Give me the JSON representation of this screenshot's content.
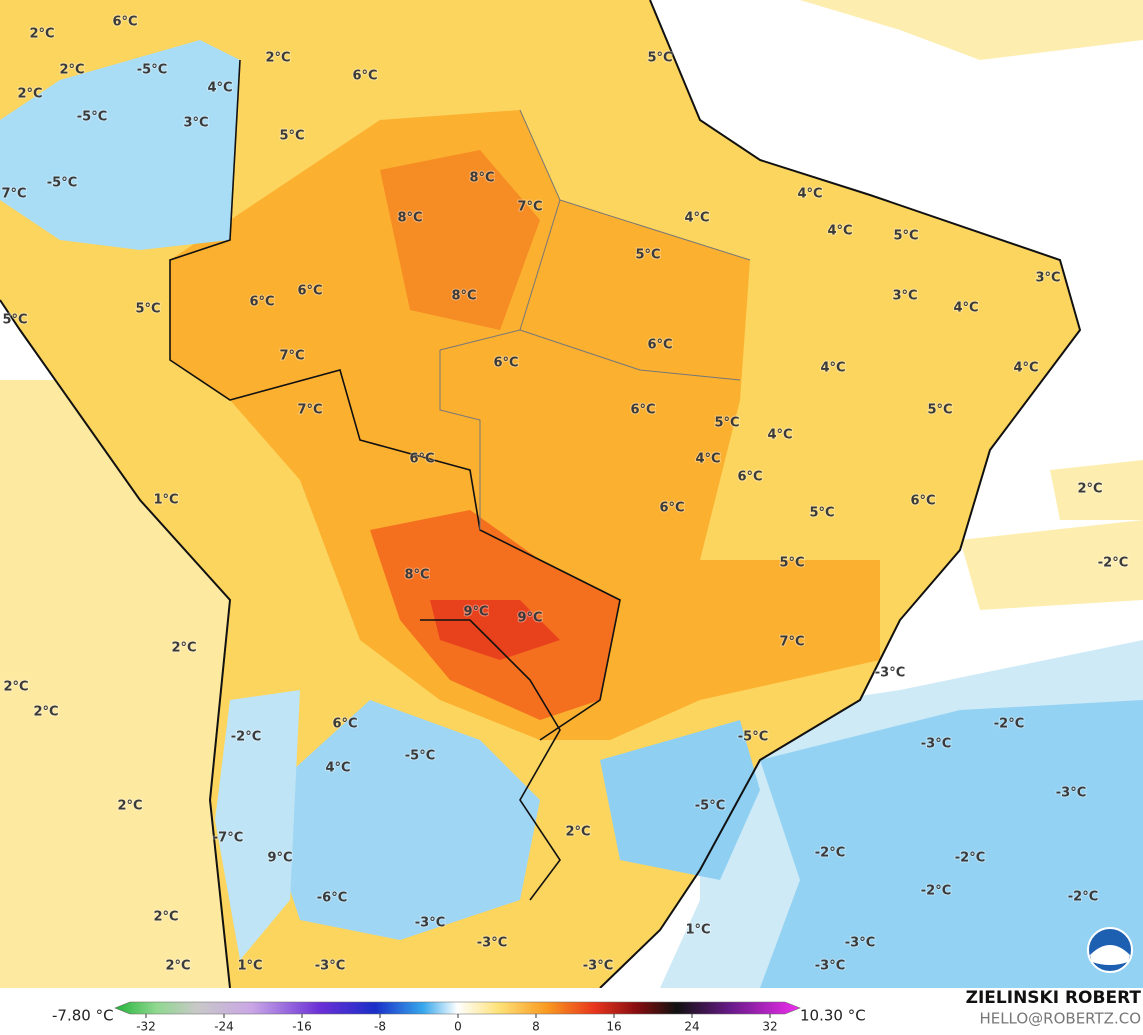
{
  "map": {
    "labels": [
      "6°C",
      "2°C",
      "2°C",
      "-5°C",
      "4°C",
      "2°C",
      "6°C",
      "2°C",
      "-5°C",
      "3°C",
      "5°C",
      "5°C",
      "-5°C",
      "7°C",
      "8°C",
      "7°C",
      "8°C",
      "4°C",
      "4°C",
      "4°C",
      "5°C",
      "5°C",
      "3°C",
      "6°C",
      "6°C",
      "8°C",
      "3°C",
      "4°C",
      "5°C",
      "5°C",
      "6°C",
      "7°C",
      "6°C",
      "4°C",
      "4°C",
      "7°C",
      "6°C",
      "5°C",
      "5°C",
      "4°C",
      "6°C",
      "4°C",
      "6°C",
      "1°C",
      "2°C",
      "6°C",
      "6°C",
      "5°C",
      "5°C",
      "-2°C",
      "8°C",
      "9°C",
      "9°C",
      "7°C",
      "2°C",
      "-3°C",
      "2°C",
      "2°C",
      "6°C",
      "-2°C",
      "-2°C",
      "-5°C",
      "-3°C",
      "-5°C",
      "4°C",
      "-3°C",
      "2°C",
      "-5°C",
      "2°C",
      "-7°C",
      "-2°C",
      "-2°C",
      "9°C",
      "-6°C",
      "-2°C",
      "-2°C",
      "2°C",
      "-3°C",
      "1°C",
      "-3°C",
      "-3°C",
      "2°C",
      "1°C",
      "-3°C",
      "-3°C",
      "-3°C"
    ]
  },
  "colorbar": {
    "min_label": "-7.80 °C",
    "max_label": "10.30 °C",
    "lim": [
      -32,
      32
    ],
    "ticks": [
      -32,
      -24,
      -16,
      -8,
      0,
      8,
      16,
      24,
      32
    ]
  },
  "credits": {
    "author": "ZIELINSKI ROBERT",
    "contact": "HELLO@ROBERTZ.CO"
  }
}
